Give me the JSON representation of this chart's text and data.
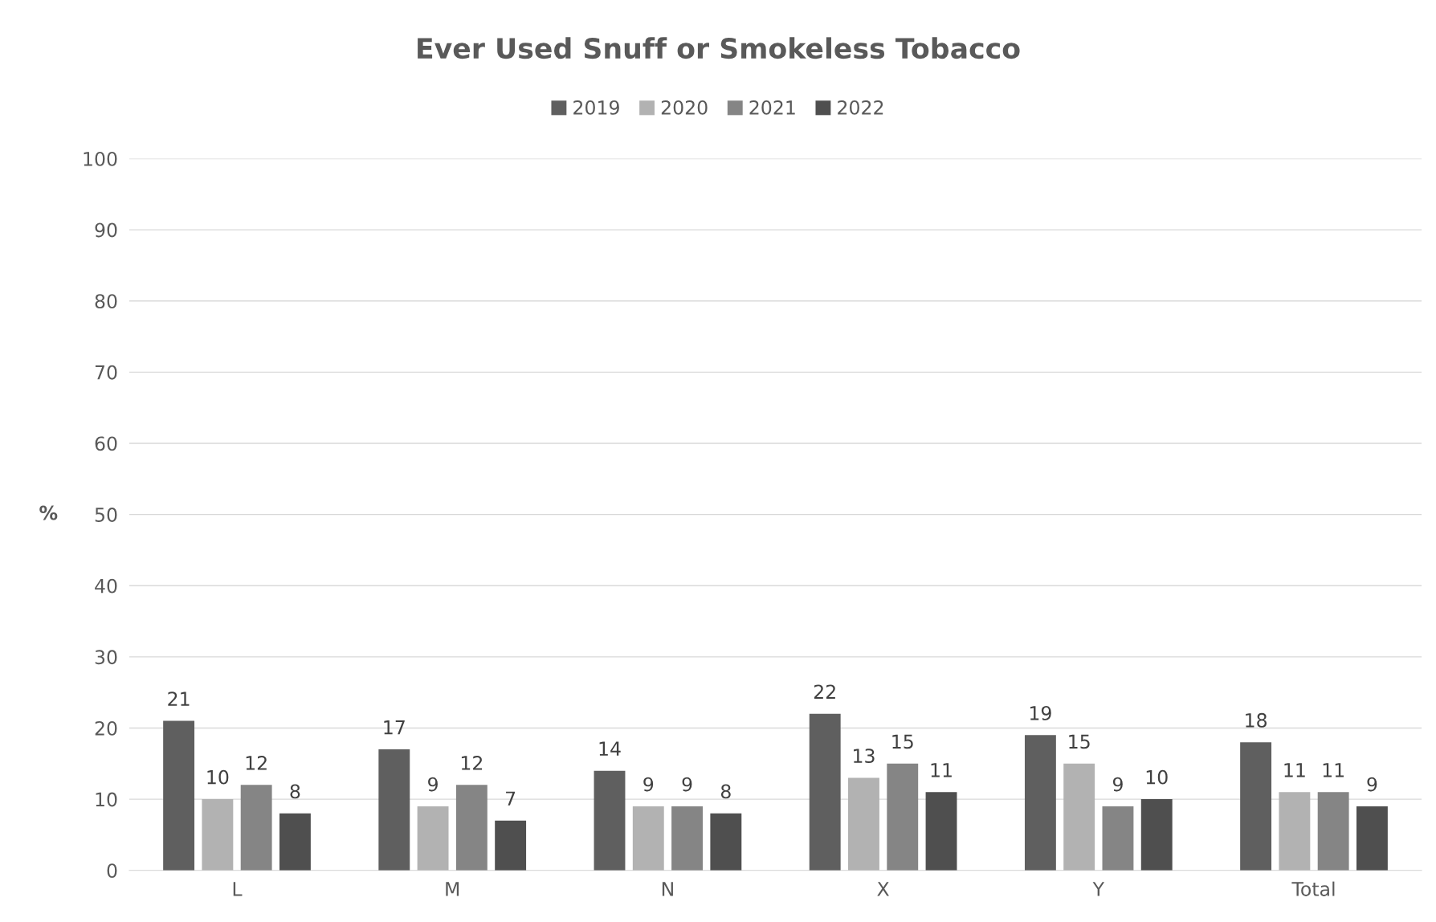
{
  "chart_data": {
    "type": "bar",
    "title": "Ever Used Snuff or Smokeless Tobacco",
    "ylabel": "%",
    "categories": [
      "L",
      "M",
      "N",
      "X",
      "Y",
      "Total"
    ],
    "series": [
      {
        "name": "2019",
        "color": "#5f5f5f",
        "values": [
          21,
          17,
          14,
          22,
          19,
          18
        ]
      },
      {
        "name": "2020",
        "color": "#b2b2b2",
        "values": [
          10,
          9,
          9,
          13,
          15,
          11
        ]
      },
      {
        "name": "2021",
        "color": "#858585",
        "values": [
          12,
          12,
          9,
          15,
          9,
          11
        ]
      },
      {
        "name": "2022",
        "color": "#4f4f4f",
        "values": [
          8,
          7,
          8,
          11,
          10,
          9
        ]
      }
    ],
    "ylim": [
      0,
      100
    ],
    "yticks": [
      0,
      10,
      20,
      30,
      40,
      50,
      60,
      70,
      80,
      90,
      100
    ],
    "grid": "y",
    "legend": "top",
    "data_labels": true
  }
}
